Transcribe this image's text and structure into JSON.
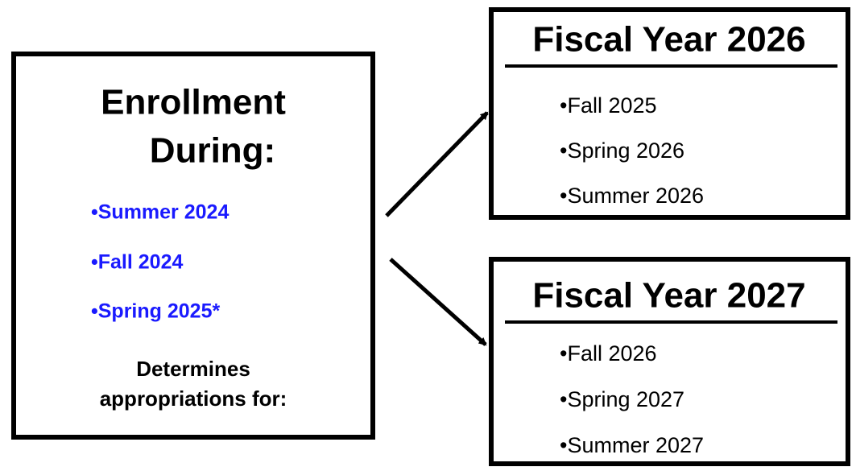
{
  "left_box": {
    "title_lines": [
      "Enrollment",
      "During:"
    ],
    "terms": [
      "•Summer 2024",
      "•Fall 2024",
      "•Spring 2025*"
    ],
    "footer_lines": [
      "Determines",
      "appropriations for:"
    ]
  },
  "fiscal_years": [
    {
      "title": "Fiscal Year 2026",
      "terms": [
        "•Fall 2025",
        "•Spring 2026",
        "•Summer 2026"
      ]
    },
    {
      "title": "Fiscal Year 2027",
      "terms": [
        "•Fall 2026",
        "•Spring 2027",
        "•Summer 2027"
      ]
    }
  ]
}
